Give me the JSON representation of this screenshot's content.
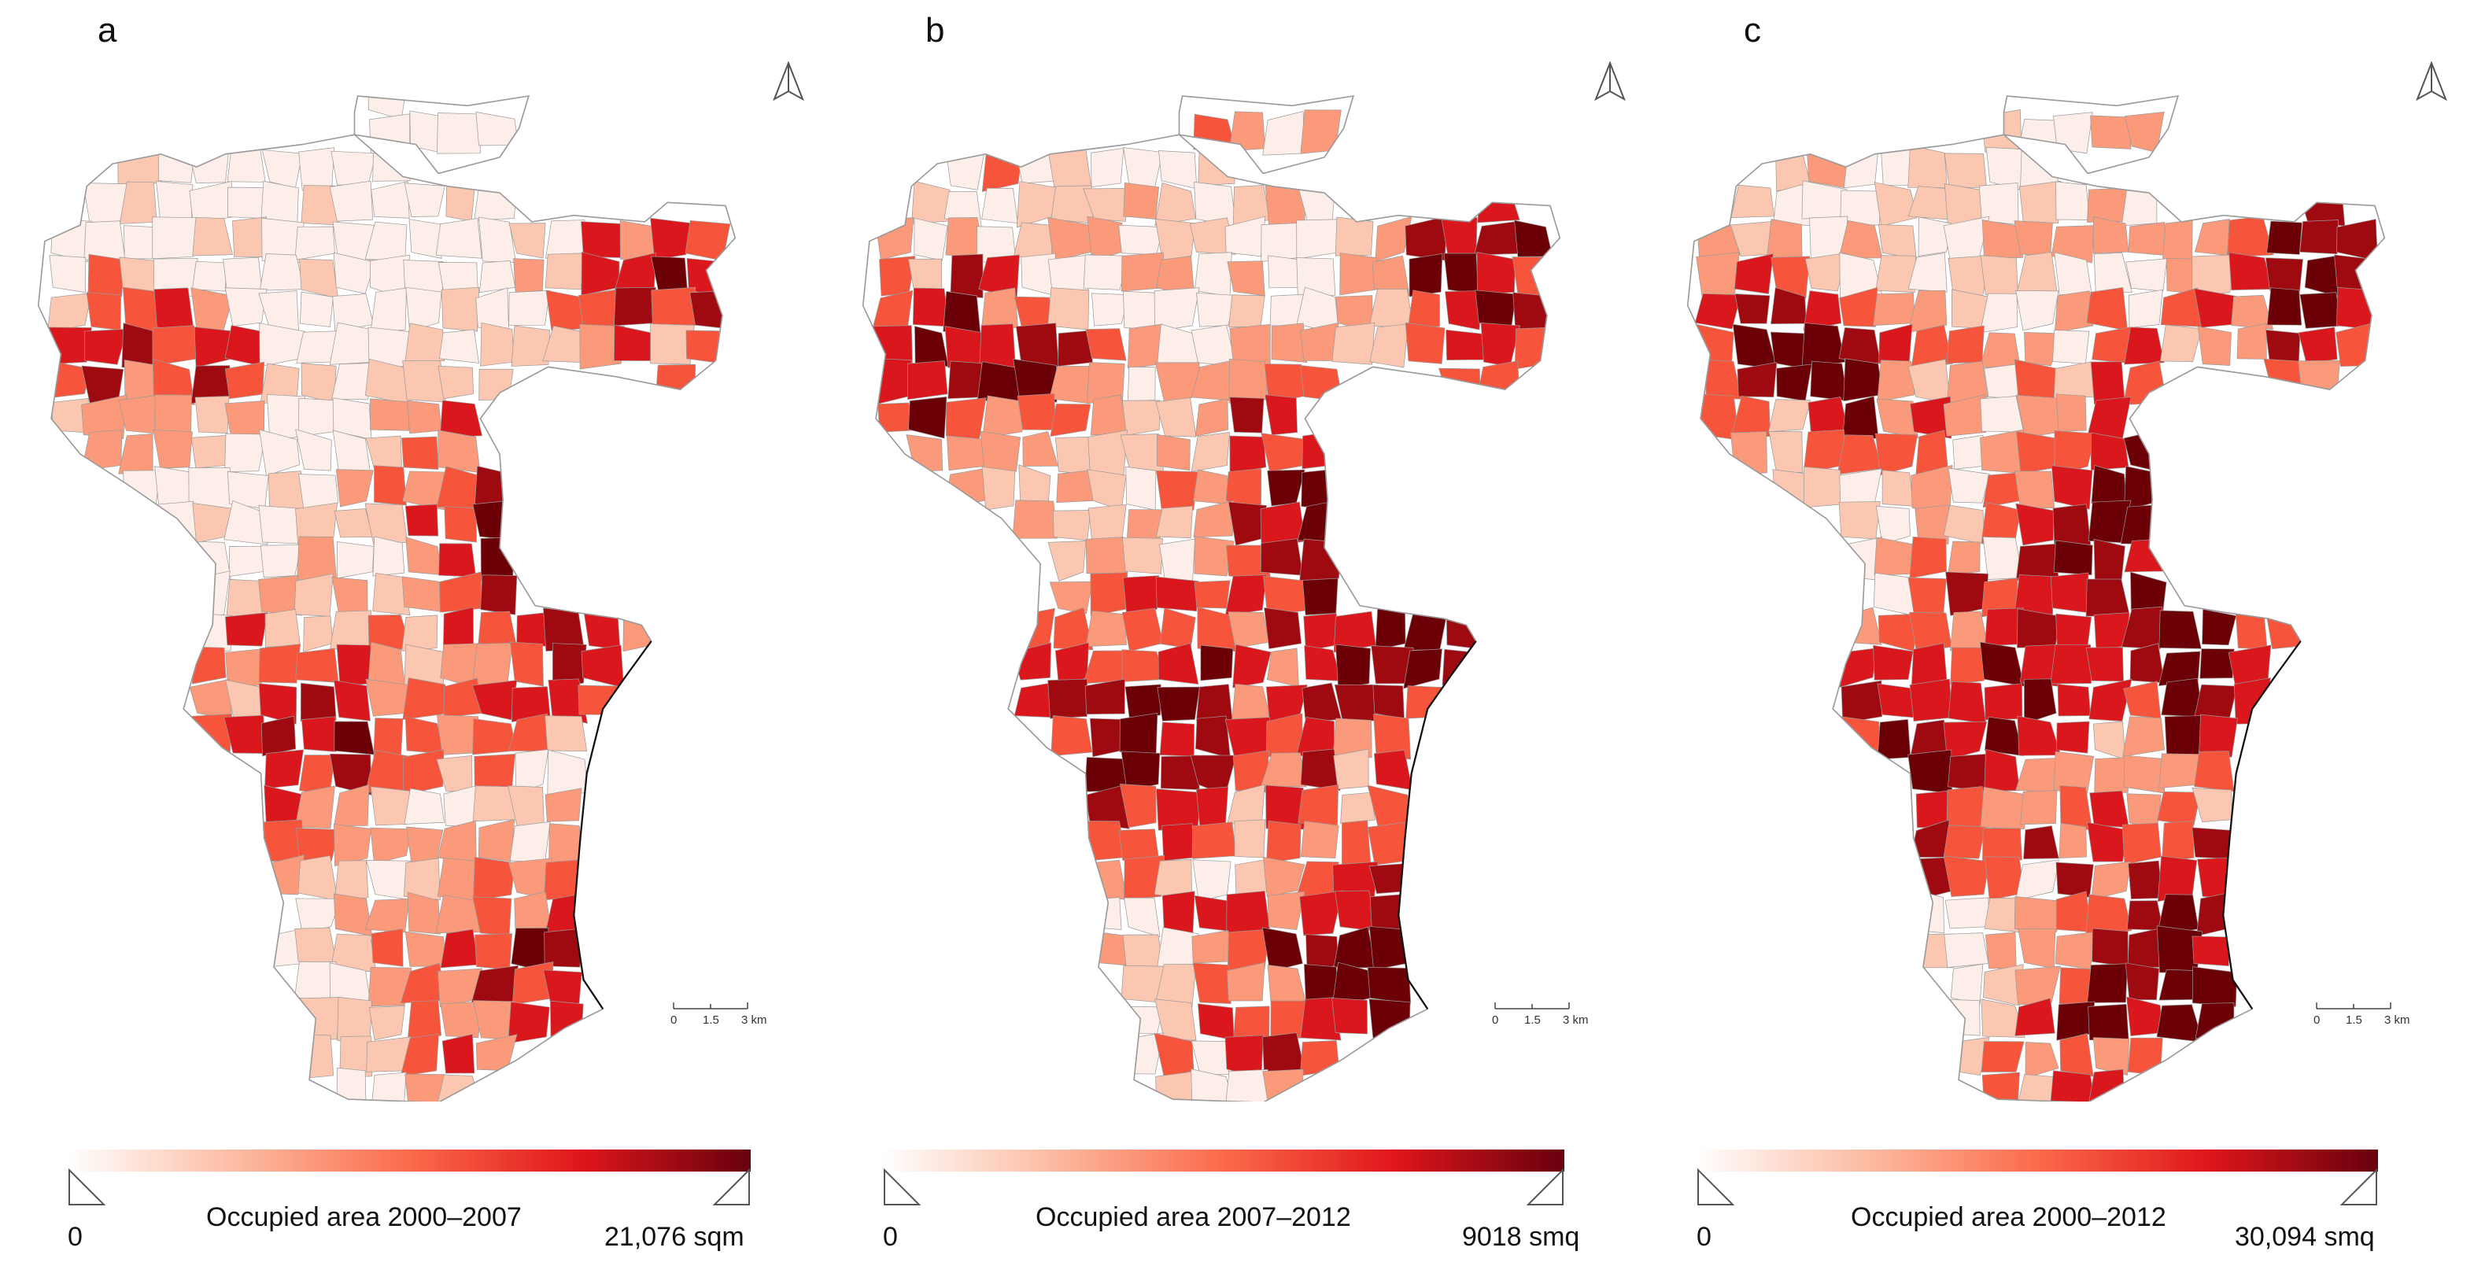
{
  "figure": {
    "panels": [
      {
        "letter": "a",
        "legend": {
          "min_label": "0",
          "title": "Occupied area 2000–2007",
          "max_label": "21,076 sqm"
        },
        "scale": {
          "tick_0": "0",
          "tick_1": "1.5",
          "tick_2": "3 km"
        },
        "darkness": 0.0
      },
      {
        "letter": "b",
        "legend": {
          "min_label": "0",
          "title": "Occupied area 2007–2012",
          "max_label": "9018 smq"
        },
        "scale": {
          "tick_0": "0",
          "tick_1": "1.5",
          "tick_2": "3 km"
        },
        "darkness": 0.35
      },
      {
        "letter": "c",
        "legend": {
          "min_label": "0",
          "title": "Occupied area 2000–2012",
          "max_label": "30,094 smq"
        },
        "scale": {
          "tick_0": "0",
          "tick_1": "1.5",
          "tick_2": "3 km"
        },
        "darkness": 0.45
      }
    ]
  },
  "colors": {
    "ramp": [
      "#fdeee9",
      "#fcc7b1",
      "#fb9a7a",
      "#f6553c",
      "#d9171c",
      "#9e0a10",
      "#6b0006"
    ],
    "boundary": "#9a9a9a",
    "coastline": "#111111",
    "legend_gradient": [
      "#ffffff",
      "#fcbba1",
      "#fb6a4a",
      "#e0161b",
      "#67000d"
    ]
  },
  "icons": {
    "north_arrow": "north-arrow-icon",
    "legend_min_marker": "legend-min-triangle-icon",
    "legend_max_marker": "legend-max-triangle-icon"
  }
}
